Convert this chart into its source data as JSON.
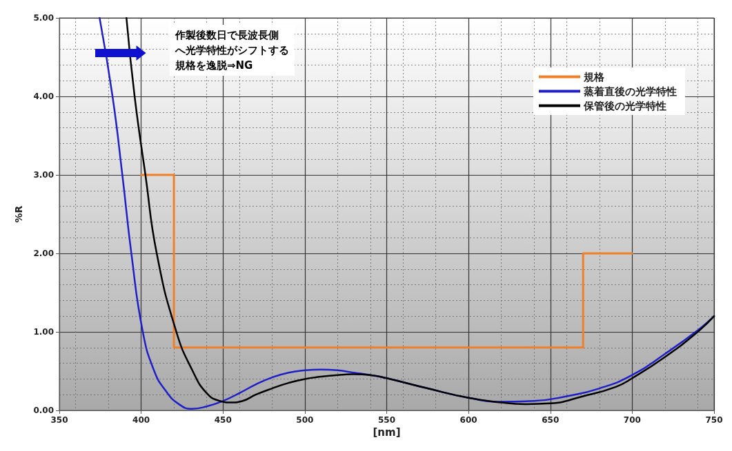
{
  "chart_data": {
    "type": "line",
    "xlabel": "[nm]",
    "ylabel": "%R",
    "xlim": [
      350,
      750
    ],
    "xticks": [
      350,
      400,
      450,
      500,
      550,
      600,
      650,
      700,
      750
    ],
    "ylim": [
      0,
      5
    ],
    "yticks": [
      {
        "value": 0,
        "label": "0.00"
      },
      {
        "value": 1,
        "label": "1.00"
      },
      {
        "value": 2,
        "label": "2.00"
      },
      {
        "value": 3,
        "label": "3.00"
      },
      {
        "value": 4,
        "label": "4.00"
      },
      {
        "value": 5,
        "label": "5.00"
      }
    ],
    "grid": true,
    "legend": "top right",
    "marker": "none",
    "line_style": "solid",
    "annotations": [
      "作製後数日で長波長側",
      "へ光学特性がシフトする",
      "規格を逸脱⇒",
      "NG"
    ],
    "series": [
      {
        "name": "規格",
        "color": "#f07f2a",
        "x": [
          400,
          420,
          420,
          670,
          670,
          700
        ],
        "values": [
          3,
          3,
          0.8,
          0.8,
          2,
          2
        ]
      },
      {
        "name": "蒸着直後の光学特性",
        "color": "#1f1fc8",
        "x": [
          374.6,
          382.5,
          388.5,
          394,
          401,
          408,
          415,
          423,
          431,
          440,
          450,
          460,
          470,
          480,
          490,
          500,
          510,
          520,
          530,
          540,
          550,
          575,
          600,
          620,
          640,
          660,
          680,
          700,
          720,
          740,
          750
        ],
        "values": [
          5.0,
          4.0,
          3.0,
          2.0,
          1.0,
          0.5,
          0.25,
          0.08,
          0.02,
          0.05,
          0.12,
          0.22,
          0.33,
          0.42,
          0.48,
          0.51,
          0.52,
          0.51,
          0.48,
          0.45,
          0.41,
          0.28,
          0.16,
          0.11,
          0.12,
          0.18,
          0.28,
          0.45,
          0.72,
          1.02,
          1.2
        ]
      },
      {
        "name": "保管後の光学特性",
        "color": "#000000",
        "x": [
          391,
          396,
          402.6,
          409.5,
          421.5,
          431.5,
          440,
          448,
          455,
          462,
          470,
          480,
          490,
          500,
          510,
          520,
          530,
          540,
          550,
          575,
          600,
          620,
          635,
          650,
          670,
          690,
          700,
          720,
          740,
          750
        ],
        "values": [
          5.0,
          4.0,
          3.0,
          2.0,
          1.0,
          0.5,
          0.22,
          0.12,
          0.1,
          0.12,
          0.2,
          0.28,
          0.35,
          0.4,
          0.43,
          0.45,
          0.46,
          0.45,
          0.41,
          0.28,
          0.16,
          0.1,
          0.08,
          0.09,
          0.18,
          0.3,
          0.41,
          0.68,
          1.0,
          1.2
        ]
      }
    ]
  }
}
